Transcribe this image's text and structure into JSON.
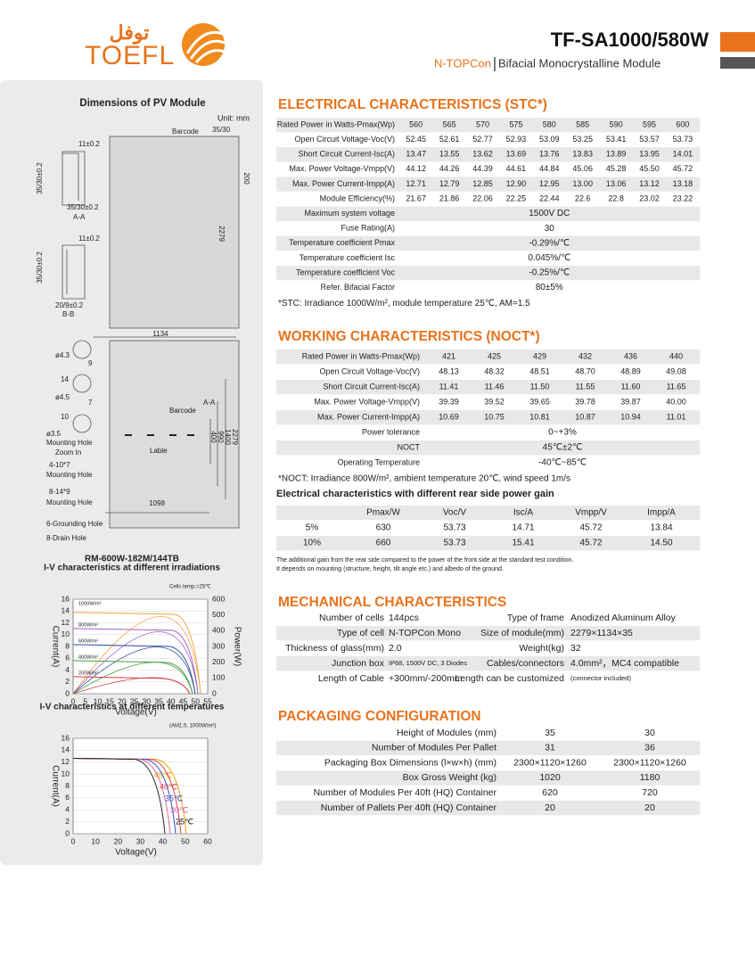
{
  "header": {
    "brand": "TOEFL",
    "brand_ar": "توفل",
    "model": "TF-SA1000/580W",
    "tech": "N-TOPCon",
    "desc": "Bifacial Monocrystalline Module"
  },
  "drawing": {
    "title": "Dimensions of PV Module",
    "unit": "Unit: mm",
    "model_name": "RM-600W-182M/144TB",
    "labels": [
      "Barcode",
      "35/30",
      "11±0.2",
      "35/30±0.2",
      "35/30±0.2",
      "A-A",
      "200",
      "2279",
      "11±0.2",
      "35/30±0.2",
      "20/9±0.2",
      "B-B",
      "1134",
      "ø4.3",
      "9",
      "14",
      "ø4.5",
      "7",
      "10",
      "ø3.5",
      "Mounting Hole",
      "Zoom In",
      "A-A",
      "Barcode",
      "Lable",
      "2279",
      "1400",
      "990",
      "400",
      "4-10*7",
      "Mounting Hole",
      "8-14*9",
      "Mounting Hole",
      "1098",
      "6-Grounding Hole",
      "8-Drain Hole"
    ]
  },
  "iv_irradiance": {
    "title": "I-V characteristics at different irradiations",
    "note": "Cells temp.=25℃",
    "ylabel": "Current(A)",
    "y2label": "Power(W)",
    "xlabel": "Voltage(V)",
    "yticks": [
      0,
      2,
      4,
      6,
      8,
      10,
      12,
      14,
      16
    ],
    "y2ticks": [
      0,
      100,
      200,
      300,
      400,
      500,
      600
    ],
    "xticks": [
      0,
      5,
      10,
      15,
      20,
      25,
      30,
      35,
      40,
      45,
      50,
      55
    ],
    "series_labels": [
      "1000W/m²",
      "800W/m²",
      "600W/m²",
      "400W/m²",
      "200W/m²"
    ]
  },
  "iv_temperature": {
    "title": "I-V characteristics at different temperatures",
    "note": "(AM1.5, 1000W/m²)",
    "ylabel": "Current(A)",
    "xlabel": "Voltage(V)",
    "yticks": [
      0,
      2,
      4,
      6,
      8,
      10,
      12,
      14,
      16
    ],
    "xticks": [
      0,
      10,
      20,
      30,
      40,
      50,
      60
    ],
    "series_labels": [
      "45℃",
      "40℃",
      "35℃",
      "30℃",
      "25℃"
    ]
  },
  "stc": {
    "title": "ELECTRICAL CHARACTERISTICS (STC*)",
    "header_label": "Rated Power in Watts-Pmax(Wp)",
    "powers": [
      560,
      565,
      570,
      575,
      580,
      585,
      590,
      595,
      600
    ],
    "rows": [
      {
        "label": "Open Circuit Voltage-Voc(V)",
        "values": [
          52.45,
          52.61,
          52.77,
          52.93,
          53.09,
          53.25,
          53.41,
          53.57,
          53.73
        ]
      },
      {
        "label": "Short Circuit Current-Isc(A)",
        "values": [
          13.47,
          13.55,
          13.62,
          13.69,
          13.76,
          13.83,
          13.89,
          13.95,
          14.01
        ]
      },
      {
        "label": "Max. Power Voltage-Vmpp(V)",
        "values": [
          44.12,
          44.26,
          44.39,
          44.61,
          44.84,
          45.06,
          45.28,
          "45.50",
          45.72
        ]
      },
      {
        "label": "Max. Power Current-Impp(A)",
        "values": [
          12.71,
          12.79,
          12.85,
          "12.90",
          12.95,
          "13.00",
          13.06,
          13.12,
          13.18
        ]
      },
      {
        "label": "Module Efficiency(%)",
        "values": [
          21.67,
          21.86,
          22.06,
          22.25,
          22.44,
          22.6,
          22.8,
          23.02,
          23.22
        ]
      }
    ],
    "common": [
      {
        "label": "Maximum system voltage",
        "value": "1500V DC"
      },
      {
        "label": "Fuse Rating(A)",
        "value": 30
      },
      {
        "label": "Temperature coefficient Pmax",
        "value": "-0.29%/℃"
      },
      {
        "label": "Temperature coefficient Isc",
        "value": "0.045%/℃"
      },
      {
        "label": "Temperature coefficient Voc",
        "value": "-0.25%/℃"
      },
      {
        "label": "Refer. Bifacial Factor",
        "value": "80±5%"
      }
    ],
    "note": "*STC: Irradiance 1000W/m², module temperature 25℃, AM=1.5"
  },
  "noct": {
    "title": "WORKING CHARACTERISTICS (NOCT*)",
    "header_label": "Rated Power in Watts-Pmax(Wp)",
    "powers": [
      421,
      425,
      429,
      432,
      436,
      440
    ],
    "rows": [
      {
        "label": "Open Circuit Voltage-Voc(V)",
        "values": [
          48.13,
          48.32,
          48.51,
          "48.70",
          48.89,
          49.08
        ]
      },
      {
        "label": "Short Circuit Current-Isc(A)",
        "values": [
          11.41,
          11.46,
          "11.50",
          11.55,
          "11.60",
          11.65
        ]
      },
      {
        "label": "Max. Power Voltage-Vmpp(V)",
        "values": [
          39.39,
          39.52,
          39.65,
          39.78,
          39.87,
          "40.00"
        ]
      },
      {
        "label": "Max. Power Current-Impp(A)",
        "values": [
          10.69,
          10.75,
          10.81,
          10.87,
          10.94,
          11.01
        ]
      }
    ],
    "common": [
      {
        "label": "Power tolerance",
        "value": "0~+3%"
      },
      {
        "label": "NOCT",
        "value": "45℃±2℃"
      },
      {
        "label": "Operating Temperature",
        "value": "-40℃~85℃"
      }
    ],
    "note": "*NOCT: Irradiance 800W/m², ambient temperature 20℃, wind speed 1m/s"
  },
  "rear_gain": {
    "title": "Electrical characteristics with different rear side power gain",
    "columns": [
      "Pmax/W",
      "Voc/V",
      "Isc/A",
      "Vmpp/V",
      "Impp/A"
    ],
    "rows": [
      {
        "label": "5%",
        "values": [
          630,
          53.73,
          14.71,
          45.72,
          13.84
        ]
      },
      {
        "label": "10%",
        "values": [
          660,
          53.73,
          15.41,
          45.72,
          "14.50"
        ]
      }
    ],
    "notes": [
      "The additional gain from the rear side compared to the power of the front side at the standard test condition.",
      "It depends on mounting (structure, height, tilt angle etc.) and albedo of the ground."
    ]
  },
  "mechanical": {
    "title": "MECHANICAL CHARACTERISTICS",
    "rows": [
      [
        "Number of cells",
        "144pcs",
        "Type of frame",
        "Anodized Aluminum Alloy"
      ],
      [
        "Type of cell",
        "N-TOPCon Mono",
        "Size of module(mm)",
        "2279×1134×35"
      ],
      [
        "Thickness of glass(mm)",
        "2.0",
        "Weight(kg)",
        "32"
      ],
      [
        "Junction box",
        "IP68, 1500V DC, 3 Diodes",
        "Cables/connectors",
        "4.0mm²，MC4 compatible"
      ],
      [
        "Length of Cable",
        "+300mm/-200mm",
        "Length can be customized",
        "(connector included)"
      ]
    ]
  },
  "packaging": {
    "title": "PACKAGING CONFIGURATION",
    "rows": [
      {
        "label": "Height of Modules (mm)",
        "values": [
          35,
          30
        ]
      },
      {
        "label": "Number of Modules Per Pallet",
        "values": [
          31,
          36
        ]
      },
      {
        "label": "Packaging Box Dimensions (l×w×h) (mm)",
        "values": [
          "2300×1120×1260",
          "2300×1120×1260"
        ]
      },
      {
        "label": "Box Gross Weight (kg)",
        "values": [
          1020,
          1180
        ]
      },
      {
        "label": "Number of Modules Per 40ft (HQ) Container",
        "values": [
          620,
          720
        ]
      },
      {
        "label": "Number of Pallets Per 40ft (HQ) Container",
        "values": [
          20,
          20
        ]
      }
    ]
  }
}
